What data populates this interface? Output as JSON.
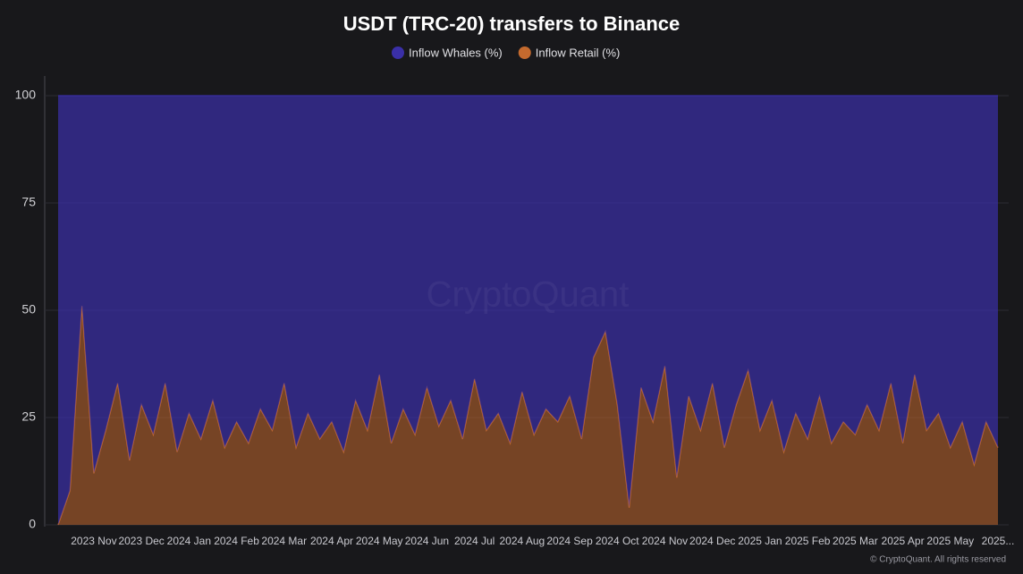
{
  "chart_data": {
    "type": "stacked_area",
    "title": "USDT (TRC-20) transfers to Binance",
    "watermark": "CryptoQuant",
    "credit": "© CryptoQuant. All rights reserved",
    "categories": [
      null,
      null,
      null,
      "2023 Nov",
      null,
      null,
      null,
      "2023 Dec",
      null,
      null,
      null,
      "2024 Jan",
      null,
      null,
      null,
      "2024 Feb",
      null,
      null,
      null,
      "2024 Mar",
      null,
      null,
      null,
      "2024 Apr",
      null,
      null,
      null,
      "2024 May",
      null,
      null,
      null,
      "2024 Jun",
      null,
      null,
      null,
      "2024 Jul",
      null,
      null,
      null,
      "2024 Aug",
      null,
      null,
      null,
      "2024 Sep",
      null,
      null,
      null,
      "2024 Oct",
      null,
      null,
      null,
      "2024 Nov",
      null,
      null,
      null,
      "2024 Dec",
      null,
      null,
      null,
      "2025 Jan",
      null,
      null,
      null,
      "2025 Feb",
      null,
      null,
      null,
      "2025 Mar",
      null,
      null,
      null,
      "2025 Apr",
      null,
      null,
      null,
      "2025 May",
      null,
      null,
      null,
      "2025..."
    ],
    "series": [
      {
        "name": "Inflow Whales (%)",
        "color": "#3a2fa8",
        "values": [
          100,
          92,
          49,
          88,
          78,
          67,
          85,
          72,
          79,
          67,
          83,
          74,
          80,
          71,
          82,
          76,
          81,
          73,
          78,
          67,
          82,
          74,
          80,
          76,
          83,
          71,
          78,
          65,
          81,
          73,
          79,
          68,
          77,
          71,
          80,
          66,
          78,
          74,
          81,
          69,
          79,
          73,
          76,
          70,
          80,
          61,
          55,
          72,
          96,
          68,
          76,
          63,
          89,
          70,
          78,
          67,
          82,
          72,
          64,
          78,
          71,
          83,
          74,
          80,
          70,
          81,
          76,
          79,
          72,
          78,
          67,
          81,
          65,
          78,
          74,
          82,
          76,
          86,
          76,
          82
        ]
      },
      {
        "name": "Inflow Retail (%)",
        "color": "#c46a2e",
        "values": [
          0,
          8,
          51,
          12,
          22,
          33,
          15,
          28,
          21,
          33,
          17,
          26,
          20,
          29,
          18,
          24,
          19,
          27,
          22,
          33,
          18,
          26,
          20,
          24,
          17,
          29,
          22,
          35,
          19,
          27,
          21,
          32,
          23,
          29,
          20,
          34,
          22,
          26,
          19,
          31,
          21,
          27,
          24,
          30,
          20,
          39,
          45,
          28,
          4,
          32,
          24,
          37,
          11,
          30,
          22,
          33,
          18,
          28,
          36,
          22,
          29,
          17,
          26,
          20,
          30,
          19,
          24,
          21,
          28,
          22,
          33,
          19,
          35,
          22,
          26,
          18,
          24,
          14,
          24,
          18
        ]
      }
    ],
    "ylim": [
      0,
      100
    ],
    "yticks": [
      0,
      25,
      50,
      75,
      100
    ],
    "grid": true
  }
}
